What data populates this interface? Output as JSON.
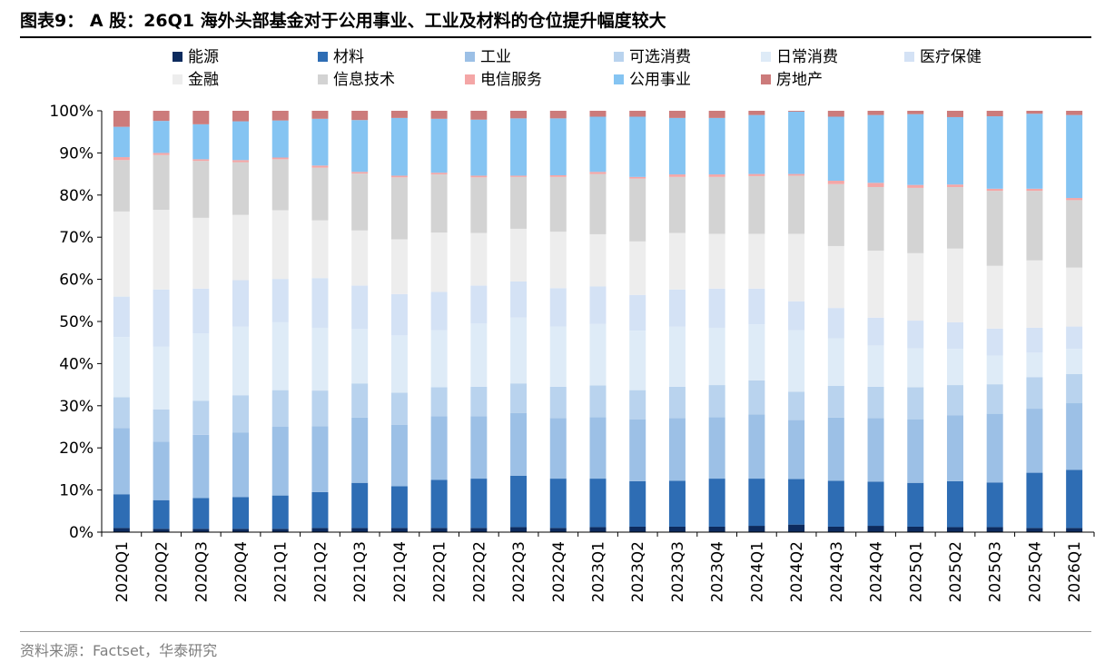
{
  "header": {
    "title": "图表9： A 股：26Q1 海外头部基金对于公用事业、工业及材料的仓位提升幅度较大"
  },
  "footer": {
    "source": "资料来源：Factset，华泰研究"
  },
  "chart_data": {
    "type": "bar",
    "stacked": true,
    "normalized_percent": true,
    "title": "",
    "xlabel": "",
    "ylabel": "",
    "ylim": [
      0,
      100
    ],
    "yticks": [
      "0%",
      "10%",
      "20%",
      "30%",
      "40%",
      "50%",
      "60%",
      "70%",
      "80%",
      "90%",
      "100%"
    ],
    "legend_position": "top",
    "grid": false,
    "categories": [
      "2020Q1",
      "2020Q2",
      "2020Q3",
      "2020Q4",
      "2021Q1",
      "2021Q2",
      "2021Q3",
      "2021Q4",
      "2022Q1",
      "2022Q2",
      "2022Q3",
      "2022Q4",
      "2023Q1",
      "2023Q2",
      "2023Q3",
      "2023Q4",
      "2024Q1",
      "2024Q2",
      "2024Q3",
      "2024Q4",
      "2025Q1",
      "2025Q2",
      "2025Q3",
      "2025Q4",
      "2026Q1"
    ],
    "series": [
      {
        "name": "能源",
        "color": "#0d2b5e",
        "values": [
          1.0,
          0.8,
          0.8,
          0.8,
          0.8,
          1.0,
          1.0,
          1.0,
          1.0,
          1.0,
          1.2,
          1.0,
          1.2,
          1.3,
          1.3,
          1.3,
          1.5,
          1.8,
          1.3,
          1.5,
          1.3,
          1.2,
          1.2,
          1.0,
          1.0
        ]
      },
      {
        "name": "材料",
        "color": "#2e6db4",
        "values": [
          8.0,
          6.8,
          7.3,
          7.5,
          7.9,
          8.5,
          10.7,
          9.9,
          11.4,
          11.7,
          12.2,
          11.7,
          11.5,
          10.8,
          10.9,
          11.4,
          11.2,
          10.8,
          10.9,
          10.5,
          10.4,
          10.9,
          10.6,
          13.1,
          13.8
        ]
      },
      {
        "name": "工业",
        "color": "#9cc0e6",
        "values": [
          15.7,
          13.9,
          15.0,
          15.3,
          16.3,
          15.6,
          15.5,
          14.6,
          15.1,
          14.8,
          14.9,
          14.4,
          14.6,
          14.7,
          14.9,
          14.6,
          15.2,
          14.0,
          15.0,
          15.1,
          15.1,
          15.6,
          16.3,
          15.2,
          15.8
        ]
      },
      {
        "name": "可选消费",
        "color": "#b9d3ee",
        "values": [
          7.3,
          7.6,
          8.1,
          8.9,
          8.7,
          8.5,
          8.1,
          7.6,
          6.9,
          7.0,
          7.0,
          7.4,
          7.5,
          6.9,
          7.4,
          7.6,
          8.1,
          6.7,
          7.5,
          7.4,
          7.6,
          7.2,
          7.0,
          7.5,
          6.9
        ]
      },
      {
        "name": "日常消费",
        "color": "#deebf7",
        "values": [
          14.3,
          14.9,
          16.0,
          16.3,
          16.1,
          14.9,
          12.9,
          13.6,
          13.5,
          15.0,
          15.6,
          14.3,
          14.6,
          14.1,
          14.3,
          13.6,
          13.3,
          14.6,
          11.3,
          9.8,
          9.2,
          8.6,
          6.8,
          5.8,
          6.0
        ]
      },
      {
        "name": "医疗保健",
        "color": "#d4e2f5",
        "values": [
          9.6,
          13.6,
          10.6,
          11.0,
          10.3,
          11.8,
          10.3,
          9.8,
          9.1,
          9.0,
          8.6,
          9.1,
          8.9,
          8.5,
          8.8,
          9.3,
          8.5,
          6.9,
          7.2,
          6.6,
          6.6,
          6.3,
          6.4,
          5.9,
          5.3
        ]
      },
      {
        "name": "金融",
        "color": "#ededed",
        "values": [
          20.2,
          18.9,
          16.8,
          15.5,
          16.3,
          13.7,
          13.1,
          13.0,
          14.1,
          12.5,
          12.5,
          13.4,
          12.4,
          12.7,
          13.4,
          13.0,
          13.0,
          16.0,
          14.7,
          15.9,
          16.0,
          17.5,
          14.9,
          16.0,
          14.0
        ]
      },
      {
        "name": "信息技术",
        "color": "#d3d3d3",
        "values": [
          12.2,
          13.0,
          13.5,
          12.5,
          12.1,
          12.5,
          13.5,
          14.7,
          13.8,
          13.2,
          12.3,
          13.0,
          14.3,
          14.9,
          13.3,
          13.5,
          13.7,
          13.8,
          14.7,
          15.1,
          15.5,
          14.6,
          17.8,
          16.5,
          16.0
        ]
      },
      {
        "name": "电信服务",
        "color": "#f4a6a6",
        "values": [
          0.7,
          0.5,
          0.4,
          0.5,
          0.4,
          0.5,
          0.4,
          0.4,
          0.4,
          0.4,
          0.3,
          0.4,
          0.5,
          0.4,
          0.6,
          0.6,
          0.5,
          0.4,
          0.8,
          1.0,
          0.7,
          0.6,
          0.5,
          0.5,
          0.5
        ]
      },
      {
        "name": "公用事业",
        "color": "#85c4f2",
        "values": [
          7.2,
          7.6,
          8.3,
          9.2,
          8.8,
          11.1,
          12.3,
          13.7,
          12.8,
          13.3,
          13.6,
          13.5,
          13.1,
          14.3,
          13.4,
          13.4,
          14.0,
          14.8,
          15.2,
          16.1,
          16.8,
          16.0,
          17.2,
          17.8,
          19.7
        ]
      },
      {
        "name": "房地产",
        "color": "#cc7b7b",
        "values": [
          3.8,
          2.4,
          3.2,
          2.5,
          2.3,
          1.9,
          2.2,
          1.7,
          1.9,
          2.1,
          1.8,
          1.8,
          1.4,
          1.4,
          1.7,
          1.7,
          1.0,
          0.2,
          1.4,
          1.0,
          0.8,
          1.5,
          1.3,
          0.7,
          1.0
        ]
      }
    ]
  }
}
